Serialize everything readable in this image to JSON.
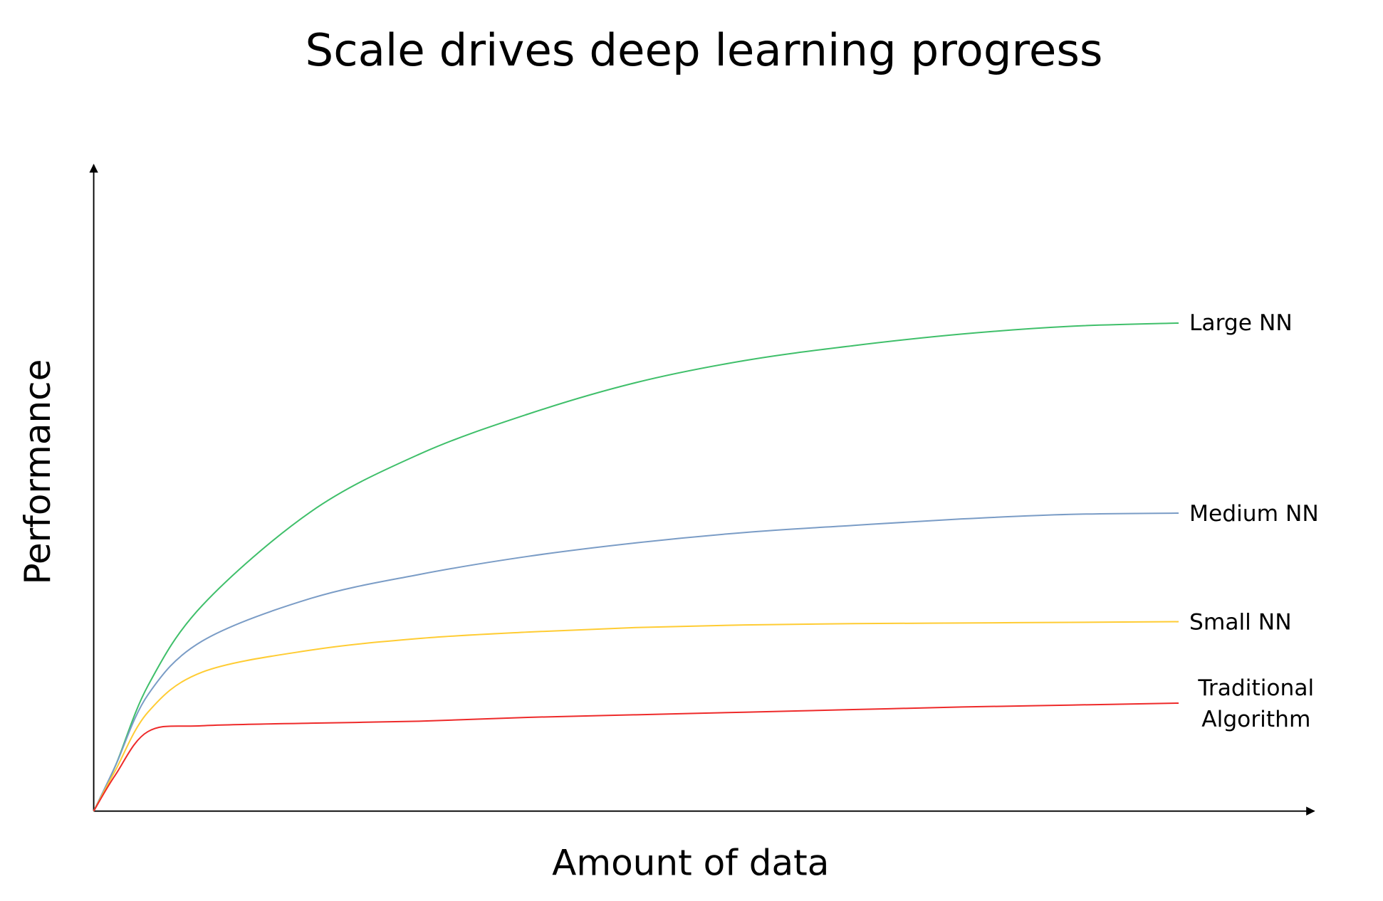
{
  "chart_data": {
    "type": "line",
    "title": "Scale drives deep learning progress",
    "x_label": "Amount of data",
    "y_label": "Performance",
    "xlim": [
      0,
      112.5
    ],
    "ylim": [
      0,
      100
    ],
    "x": [
      0,
      2,
      5,
      10,
      20,
      30,
      40,
      50,
      60,
      70,
      80,
      90,
      100
    ],
    "series": [
      {
        "name": "Large NN",
        "color": "#3fbf6a",
        "values": [
          0,
          7,
          19.4,
          31.8,
          46.3,
          55.2,
          61.4,
          66.3,
          69.7,
          72,
          73.8,
          75,
          75.5
        ]
      },
      {
        "name": "Medium NN",
        "color": "#7a9cc6",
        "values": [
          0,
          7,
          18,
          26.3,
          32.9,
          36.6,
          39.4,
          41.5,
          43.1,
          44.2,
          45.2,
          45.9,
          46.1
        ]
      },
      {
        "name": "Small NN",
        "color": "#ffcc33",
        "values": [
          0,
          6.3,
          15.3,
          21.5,
          24.9,
          26.7,
          27.7,
          28.4,
          28.8,
          29,
          29.1,
          29.2,
          29.3
        ]
      },
      {
        "name": "Traditional Algorithm",
        "color": "#ee2a2a",
        "values": [
          0,
          5.6,
          12.3,
          13.2,
          13.6,
          13.9,
          14.5,
          14.9,
          15.3,
          15.7,
          16.1,
          16.4,
          16.7
        ]
      }
    ]
  }
}
